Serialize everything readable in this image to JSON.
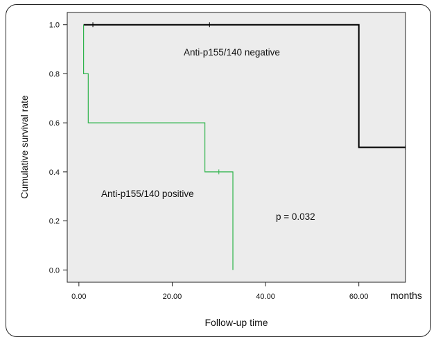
{
  "chart_data": {
    "type": "line",
    "title": "",
    "xlabel": "Follow-up time",
    "ylabel": "Cumulative survival rate",
    "x_unit": "months",
    "xlim": [
      -2.5,
      70
    ],
    "ylim": [
      -0.05,
      1.05
    ],
    "x_ticks": [
      0,
      20,
      40,
      60
    ],
    "x_tick_labels": [
      "0.00",
      "20.00",
      "40.00",
      "60.00"
    ],
    "y_ticks": [
      0.0,
      0.2,
      0.4,
      0.6,
      0.8,
      1.0
    ],
    "y_tick_labels": [
      "0.0",
      "0.2",
      "0.4",
      "0.6",
      "0.8",
      "1.0"
    ],
    "series": [
      {
        "name": "Anti-p155/140 negative",
        "color": "#000000",
        "steps": [
          [
            1,
            1.0
          ],
          [
            60,
            1.0
          ],
          [
            60,
            0.5
          ],
          [
            70,
            0.5
          ]
        ],
        "censored": [
          [
            3,
            1.0
          ],
          [
            28,
            1.0
          ],
          [
            70,
            0.5
          ]
        ]
      },
      {
        "name": "Anti-p155/140 positive",
        "color": "#2db34a",
        "steps": [
          [
            1,
            1.0
          ],
          [
            1,
            0.8
          ],
          [
            2,
            0.8
          ],
          [
            2,
            0.6
          ],
          [
            27,
            0.6
          ],
          [
            27,
            0.4
          ],
          [
            33,
            0.4
          ],
          [
            33,
            0.0
          ]
        ],
        "censored": [
          [
            30,
            0.4
          ]
        ]
      }
    ],
    "annotations": {
      "negative_label": "Anti-p155/140 negative",
      "positive_label": "Anti-p155/140 positive",
      "p_value": "p = 0.032"
    },
    "background": "#ececec"
  }
}
